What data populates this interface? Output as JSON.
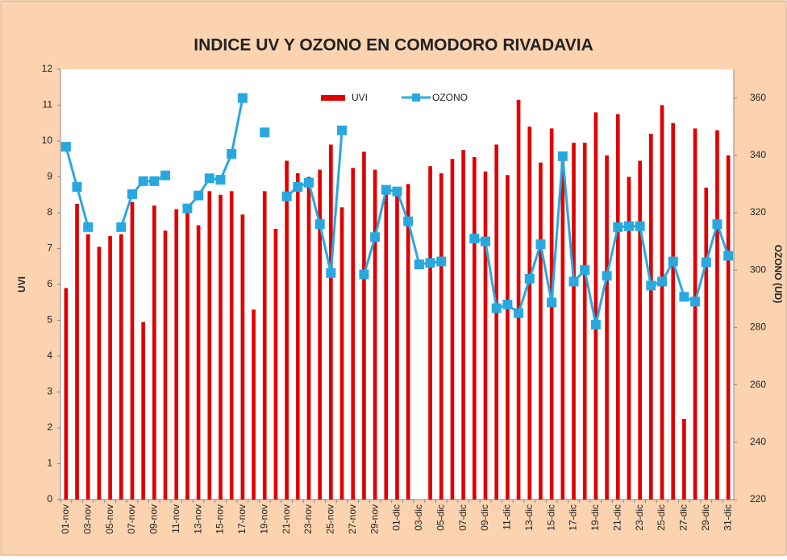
{
  "chart_data": {
    "type": "bar",
    "title": "INDICE UV Y OZONO EN COMODORO RIVADAVIA",
    "y_label": "UVI",
    "y2_label": "OZONO (UD)",
    "categories": [
      "01-nov",
      null,
      "03-nov",
      null,
      "05-nov",
      null,
      "07-nov",
      null,
      "09-nov",
      null,
      "11-nov",
      null,
      "13-nov",
      null,
      "15-nov",
      null,
      "17-nov",
      null,
      "19-nov",
      null,
      "21-nov",
      null,
      "23-nov",
      null,
      "25-nov",
      null,
      "27-nov",
      null,
      "29-nov",
      null,
      "01-dic",
      null,
      "03-dic",
      null,
      "05-dic",
      null,
      "07-dic",
      null,
      "09-dic",
      null,
      "11-dic",
      null,
      "13-dic",
      null,
      "15-dic",
      null,
      "17-dic",
      null,
      "19-dic",
      null,
      "21-dic",
      null,
      "23-dic",
      null,
      "25-dic",
      null,
      "27-dic",
      null,
      "29-dic",
      null,
      "31-dic"
    ],
    "series": [
      {
        "name": "UVI",
        "color": "#e00000",
        "type": "bar",
        "values": [
          5.9,
          8.25,
          7.4,
          7.05,
          7.35,
          7.4,
          8.3,
          4.95,
          8.2,
          7.5,
          8.1,
          8.2,
          7.65,
          8.6,
          8.5,
          8.6,
          7.95,
          5.3,
          8.6,
          7.55,
          9.45,
          9.1,
          9.0,
          9.2,
          9.9,
          8.15,
          9.25,
          9.7,
          9.2,
          8.6,
          8.7,
          8.8,
          null,
          9.3,
          9.1,
          9.5,
          9.75,
          9.55,
          9.15,
          9.9,
          9.05,
          11.15,
          10.4,
          9.4,
          10.35,
          9.6,
          9.95,
          9.95,
          10.8,
          9.6,
          10.75,
          9.0,
          9.45,
          10.2,
          11.0,
          10.5,
          2.25,
          10.35,
          8.7,
          10.3,
          9.6
        ]
      },
      {
        "name": "OZONO",
        "color": "#29a8e0",
        "type": "line",
        "axis": "y2",
        "values": [
          343,
          329,
          315,
          null,
          null,
          315,
          326.5,
          331,
          331,
          333,
          null,
          321.5,
          326,
          332,
          331.5,
          340.5,
          360,
          null,
          348,
          null,
          325.7,
          329,
          330.5,
          316,
          299,
          348.7,
          null,
          298.5,
          311.5,
          328,
          327.4,
          317,
          302,
          302.5,
          303,
          null,
          null,
          311,
          310,
          286.7,
          288,
          285,
          297,
          309,
          288.7,
          339.7,
          296,
          300,
          281,
          298,
          315,
          315.3,
          315.3,
          294.6,
          296,
          303,
          290.7,
          289,
          302.7,
          316,
          305
        ]
      }
    ],
    "ylim": [
      0,
      12
    ],
    "yticks": [
      0,
      1,
      2,
      3,
      4,
      5,
      6,
      7,
      8,
      9,
      10,
      11,
      12
    ],
    "y2lim": [
      220,
      370
    ],
    "y2ticks": [
      220,
      240,
      260,
      280,
      300,
      320,
      340,
      360
    ],
    "legend": "top"
  }
}
